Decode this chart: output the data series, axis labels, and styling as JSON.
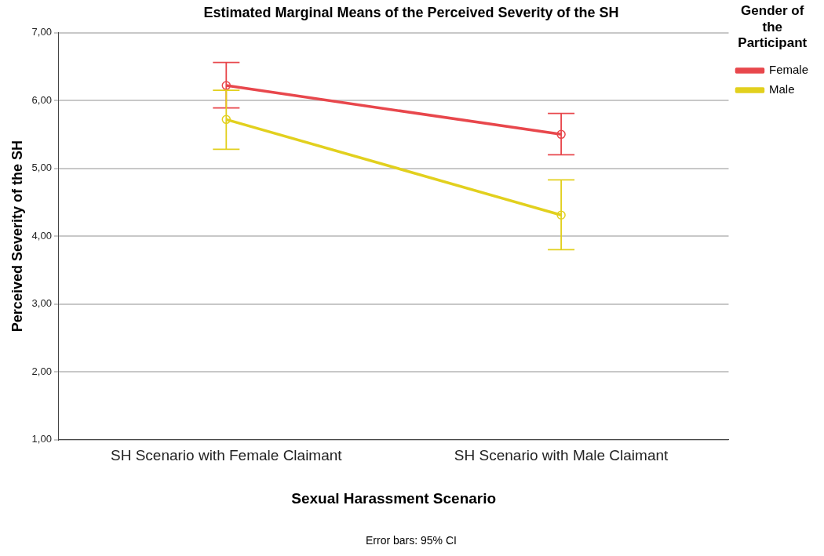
{
  "chart_data": {
    "type": "line",
    "title": "Estimated Marginal Means of the Perceived Severity of the SH",
    "categories": [
      "SH Scenario with Female Claimant",
      "SH Scenario with Male Claimant"
    ],
    "series": [
      {
        "name": "Female",
        "color": "#e8474c",
        "values": [
          6.22,
          5.5
        ],
        "errors": [
          [
            5.89,
            6.56
          ],
          [
            5.2,
            5.81
          ]
        ]
      },
      {
        "name": "Male",
        "color": "#e2d01e",
        "values": [
          5.72,
          4.31
        ],
        "errors": [
          [
            5.28,
            6.15
          ],
          [
            3.8,
            4.83
          ]
        ]
      }
    ],
    "xlabel": "Sexual Harassment Scenario",
    "ylabel": "Perceived Severity of the SH",
    "legend_title": "Gender of the Participant",
    "ylim": [
      1,
      7
    ],
    "yticks": [
      {
        "value": 1,
        "label": "1,00"
      },
      {
        "value": 2,
        "label": "2,00"
      },
      {
        "value": 3,
        "label": "3,00"
      },
      {
        "value": 4,
        "label": "4,00"
      },
      {
        "value": 5,
        "label": "5,00"
      },
      {
        "value": 6,
        "label": "6,00"
      },
      {
        "value": 7,
        "label": "7,00"
      }
    ],
    "grid": "y",
    "legend": "top right",
    "marker": "circle",
    "line_style": "solid",
    "annotations": [
      "Error bars: 95% CI"
    ]
  }
}
